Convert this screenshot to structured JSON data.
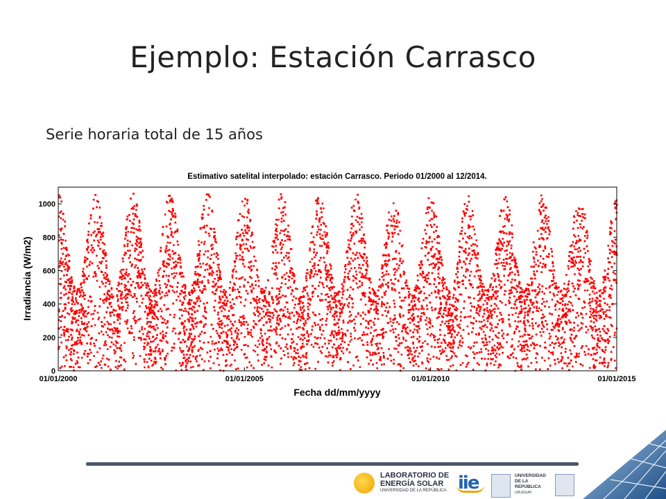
{
  "slide": {
    "title": "Ejemplo: Estación Carrasco",
    "subtitle": "Serie horaria total de 15 años"
  },
  "chart_data": {
    "type": "scatter",
    "title": "Estimativo satelital interpolado: estación Carrasco. Periodo 01/2000 al 12/2014.",
    "xlabel": "Fecha dd/mm/yyyy",
    "ylabel": "Irradiancia (W/m2)",
    "x_ticks": [
      "01/01/2000",
      "01/01/2005",
      "01/01/2010",
      "01/01/2015"
    ],
    "xlim": [
      "01/01/2000",
      "01/01/2015"
    ],
    "y_ticks": [
      0,
      200,
      400,
      600,
      800,
      1000
    ],
    "ylim": [
      0,
      1100
    ],
    "grid": false,
    "point_color": "#ff0000",
    "series": [
      {
        "annual_peaks": [
          {
            "year": 2000,
            "y": 1070
          },
          {
            "year": 2001,
            "y": 1065
          },
          {
            "year": 2002,
            "y": 1070
          },
          {
            "year": 2003,
            "y": 1065
          },
          {
            "year": 2004,
            "y": 1075
          },
          {
            "year": 2005,
            "y": 1070
          },
          {
            "year": 2006,
            "y": 1070
          },
          {
            "year": 2007,
            "y": 1070
          },
          {
            "year": 2008,
            "y": 1065
          },
          {
            "year": 2009,
            "y": 1065
          },
          {
            "year": 2010,
            "y": 1065
          },
          {
            "year": 2011,
            "y": 1065
          },
          {
            "year": 2012,
            "y": 1060
          },
          {
            "year": 2013,
            "y": 1065
          },
          {
            "year": 2014,
            "y": 1060
          }
        ],
        "annual_winter_max": [
          {
            "year": 2000,
            "y": 490
          },
          {
            "year": 2001,
            "y": 480
          },
          {
            "year": 2002,
            "y": 485
          },
          {
            "year": 2003,
            "y": 480
          },
          {
            "year": 2004,
            "y": 480
          },
          {
            "year": 2005,
            "y": 490
          },
          {
            "year": 2006,
            "y": 470
          },
          {
            "year": 2007,
            "y": 480
          },
          {
            "year": 2008,
            "y": 485
          },
          {
            "year": 2009,
            "y": 470
          },
          {
            "year": 2010,
            "y": 480
          },
          {
            "year": 2011,
            "y": 485
          },
          {
            "year": 2012,
            "y": 480
          },
          {
            "year": 2013,
            "y": 490
          },
          {
            "year": 2014,
            "y": 480
          }
        ]
      }
    ]
  },
  "footer": {
    "les_line1": "LABORATORIO DE",
    "les_line2": "ENERGÍA SOLAR",
    "les_line3": "UNIVERSIDAD DE LA REPÚBLICA",
    "iie": "iie",
    "udelar_line1": "UNIVERSIDAD",
    "udelar_line2": "DE LA REPÚBLICA",
    "udelar_line3": "URUGUAY",
    "colors": {
      "accent": "#2463b0",
      "sun": "#f0a400",
      "rule": "#4a5568"
    }
  }
}
